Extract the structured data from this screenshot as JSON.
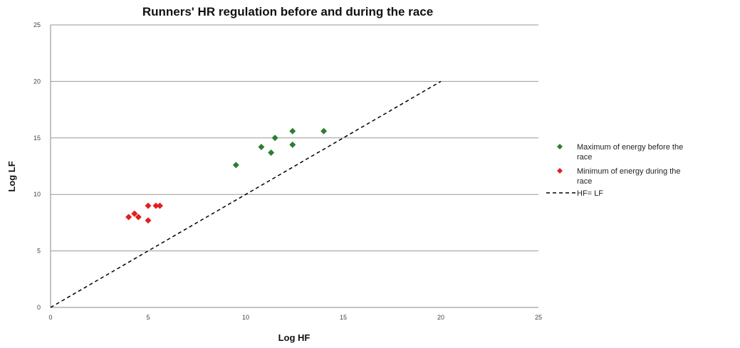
{
  "chart_data": {
    "type": "scatter",
    "title": "Runners' HR regulation before and during the race",
    "xlabel": "Log HF",
    "ylabel": "Log LF",
    "xlim": [
      0,
      25
    ],
    "ylim": [
      0,
      25
    ],
    "x_ticks": [
      "0",
      "5",
      "10",
      "15",
      "20",
      "25"
    ],
    "y_ticks": [
      "0",
      "5",
      "10",
      "15",
      "20",
      "25"
    ],
    "grid": "horizontal",
    "legend_position": "right",
    "series": [
      {
        "name": "Maximum of energy before the race",
        "color": "#2e7d32",
        "marker": "diamond",
        "points": [
          [
            9.5,
            12.6
          ],
          [
            10.8,
            14.2
          ],
          [
            11.3,
            13.7
          ],
          [
            11.5,
            15.0
          ],
          [
            12.4,
            15.6
          ],
          [
            12.4,
            14.4
          ],
          [
            14.0,
            15.6
          ]
        ]
      },
      {
        "name": "Minimum of energy during the race",
        "color": "#e02020",
        "marker": "diamond",
        "points": [
          [
            4.0,
            8.0
          ],
          [
            4.3,
            8.3
          ],
          [
            4.5,
            8.0
          ],
          [
            5.0,
            9.0
          ],
          [
            5.0,
            7.7
          ],
          [
            5.4,
            9.0
          ],
          [
            5.6,
            9.0
          ]
        ]
      },
      {
        "name": "HF= LF",
        "color": "#000000",
        "line_style": "dashed",
        "points": [
          [
            0,
            0
          ],
          [
            20,
            20
          ]
        ]
      }
    ]
  }
}
